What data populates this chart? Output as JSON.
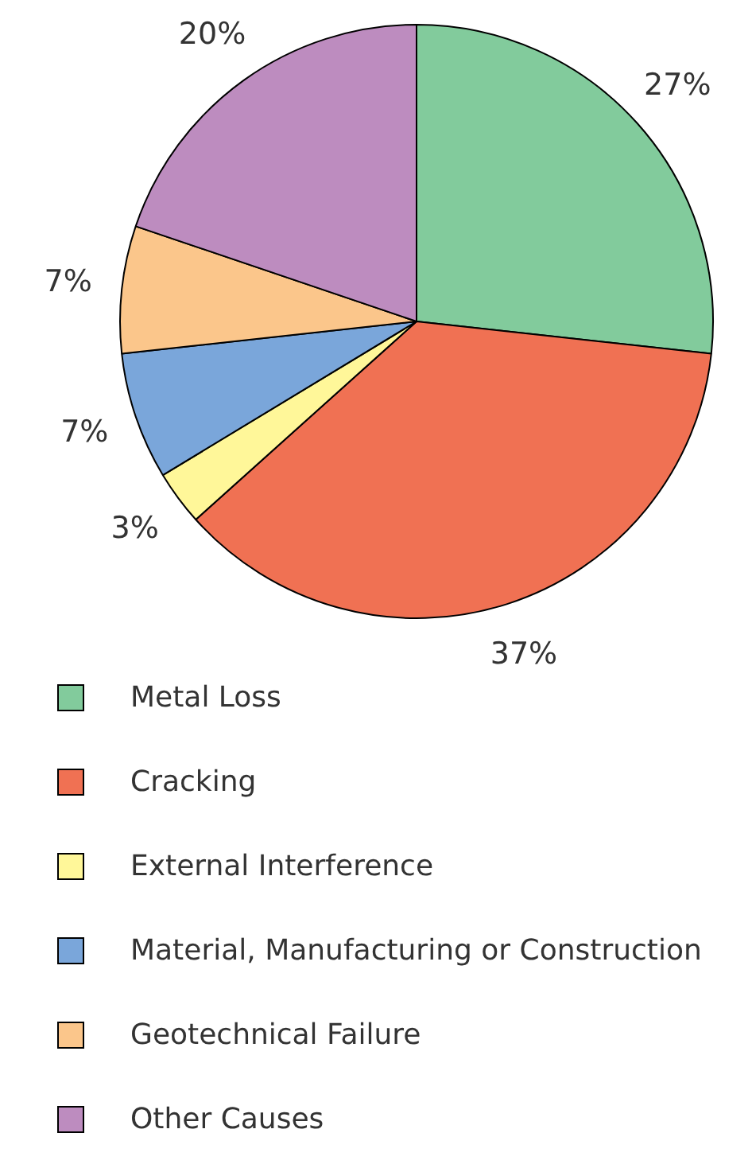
{
  "chart_data": {
    "type": "pie",
    "categories": [
      "Metal Loss",
      "Cracking",
      "External Interference",
      "Material, Manufacturing or Construction",
      "Geotechnical Failure",
      "Other Causes"
    ],
    "values": [
      27,
      37,
      3,
      7,
      7,
      20
    ],
    "value_labels": [
      "27%",
      "37%",
      "3%",
      "7%",
      "7%",
      "20%"
    ],
    "colors": [
      "#82cb9c",
      "#f07153",
      "#fff799",
      "#7aa6da",
      "#fbc68b",
      "#bd8cbf"
    ],
    "legend": "bottom"
  }
}
